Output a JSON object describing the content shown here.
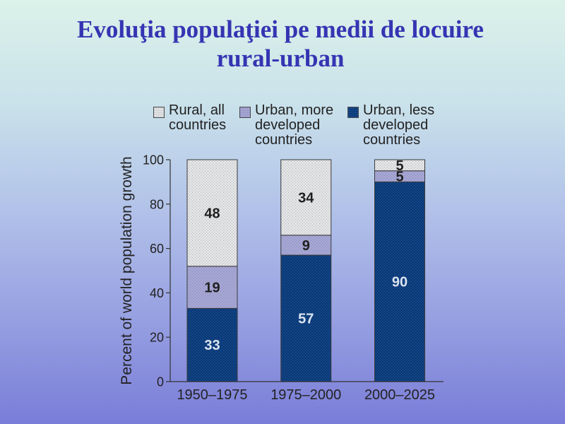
{
  "slide": {
    "title_lines": [
      "Evoluţia populaţiei pe medii de locuire",
      "rural-urban"
    ]
  },
  "chart_data": {
    "type": "bar",
    "stacked": true,
    "categories": [
      "1950–1975",
      "1975–2000",
      "2000–2025"
    ],
    "series": [
      {
        "name": "Rural, all countries",
        "values": [
          48,
          34,
          5
        ],
        "color": "#e3e4e6",
        "dot_color": "#b4b4b8",
        "label_color": "#1f1f1f"
      },
      {
        "name": "Urban, more developed countries",
        "values": [
          19,
          9,
          5
        ],
        "color": "#a5a6d2",
        "dot_color": "#8a8bbf",
        "label_color": "#1f1f1f"
      },
      {
        "name": "Urban, less developed countries",
        "values": [
          33,
          57,
          90
        ],
        "color": "#0b3a7a",
        "dot_color": "#2d5c97",
        "label_color": "#dbe4f0"
      }
    ],
    "xlabel": "",
    "ylabel": "Percent of world population growth",
    "ylim": [
      0,
      100
    ],
    "yticks": [
      0,
      20,
      40,
      60,
      80,
      100
    ],
    "legend": "top",
    "grid": false
  }
}
